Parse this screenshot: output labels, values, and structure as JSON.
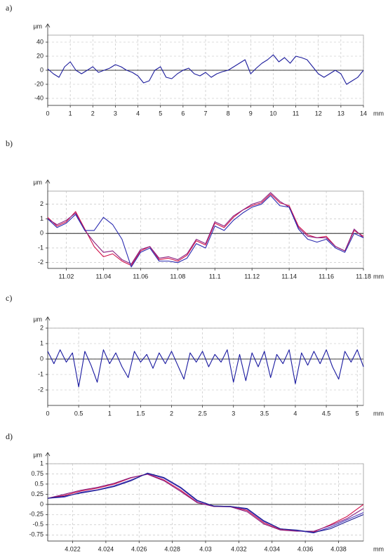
{
  "chart_data": [
    {
      "type": "line",
      "label": "a)",
      "ylabel": "µm",
      "xlabel": "mm",
      "grid": true,
      "xlim": [
        0,
        14
      ],
      "ylim": [
        -50,
        50
      ],
      "xticks": [
        0,
        1,
        2,
        3,
        4,
        5,
        6,
        7,
        8,
        9,
        10,
        11,
        12,
        13,
        14
      ],
      "yticks": [
        -40,
        -20,
        0,
        20,
        40
      ],
      "x": [
        0,
        0.25,
        0.5,
        0.75,
        1,
        1.25,
        1.5,
        1.75,
        2,
        2.25,
        2.5,
        2.75,
        3,
        3.25,
        3.5,
        3.75,
        4,
        4.25,
        4.5,
        4.75,
        5,
        5.25,
        5.5,
        5.75,
        6,
        6.25,
        6.5,
        6.75,
        7,
        7.25,
        7.5,
        7.75,
        8,
        8.25,
        8.5,
        8.75,
        9,
        9.25,
        9.5,
        9.75,
        10,
        10.25,
        10.5,
        10.75,
        11,
        11.25,
        11.5,
        11.75,
        12,
        12.25,
        12.5,
        12.75,
        13,
        13.25,
        13.5,
        13.75,
        14
      ],
      "series": [
        {
          "color": "#1c1c9c",
          "values": [
            2,
            -5,
            -10,
            5,
            12,
            0,
            -5,
            0,
            5,
            -3,
            0,
            3,
            8,
            5,
            0,
            -3,
            -8,
            -18,
            -15,
            0,
            5,
            -10,
            -12,
            -5,
            0,
            3,
            -5,
            -8,
            -3,
            -10,
            -5,
            -2,
            0,
            5,
            10,
            15,
            -5,
            3,
            10,
            15,
            22,
            12,
            18,
            10,
            20,
            18,
            15,
            5,
            -5,
            -10,
            -5,
            0,
            -5,
            -20,
            -15,
            -10,
            0
          ]
        }
      ]
    },
    {
      "type": "line",
      "label": "b)",
      "ylabel": "µm",
      "xlabel": "mm",
      "grid": true,
      "xlim": [
        11.01,
        11.18
      ],
      "ylim": [
        -2.4,
        2.9
      ],
      "xticks": [
        11.02,
        11.04,
        11.06,
        11.08,
        11.1,
        11.12,
        11.14,
        11.16,
        11.18
      ],
      "yticks": [
        -2,
        -1,
        0,
        1,
        2
      ],
      "x": [
        11.01,
        11.015,
        11.02,
        11.025,
        11.03,
        11.035,
        11.04,
        11.045,
        11.05,
        11.055,
        11.06,
        11.065,
        11.07,
        11.075,
        11.08,
        11.085,
        11.09,
        11.095,
        11.1,
        11.105,
        11.11,
        11.115,
        11.12,
        11.125,
        11.13,
        11.135,
        11.14,
        11.145,
        11.15,
        11.155,
        11.16,
        11.165,
        11.17,
        11.175,
        11.18
      ],
      "series": [
        {
          "color": "#d0104a",
          "values": [
            1.1,
            0.5,
            0.8,
            1.5,
            0.3,
            -0.9,
            -1.6,
            -1.4,
            -1.9,
            -2.2,
            -1.2,
            -0.9,
            -1.8,
            -1.7,
            -1.9,
            -1.5,
            -0.5,
            -0.8,
            0.7,
            0.4,
            1.1,
            1.6,
            1.9,
            2.1,
            2.7,
            2.1,
            1.9,
            0.5,
            -0.1,
            -0.3,
            -0.2,
            -0.9,
            -1.2,
            0.2,
            -0.2
          ]
        },
        {
          "color": "#8a2080",
          "values": [
            1.0,
            0.6,
            0.9,
            1.4,
            0.2,
            -0.6,
            -1.3,
            -1.2,
            -1.8,
            -2.1,
            -1.1,
            -0.9,
            -1.7,
            -1.6,
            -1.8,
            -1.4,
            -0.4,
            -0.7,
            0.8,
            0.5,
            1.2,
            1.6,
            2.0,
            2.2,
            2.8,
            2.2,
            1.8,
            0.4,
            -0.2,
            -0.3,
            -0.3,
            -0.9,
            -1.2,
            0.3,
            -0.3
          ]
        },
        {
          "color": "#2a2ab0",
          "values": [
            1.0,
            0.4,
            0.7,
            1.3,
            0.2,
            0.2,
            1.1,
            0.6,
            -0.4,
            -2.3,
            -1.3,
            -1.0,
            -1.9,
            -1.9,
            -2.0,
            -1.7,
            -0.7,
            -1.0,
            0.5,
            0.2,
            0.9,
            1.4,
            1.8,
            2.0,
            2.6,
            1.9,
            1.8,
            0.3,
            -0.4,
            -0.6,
            -0.4,
            -1.0,
            -1.3,
            0.0,
            -0.3
          ]
        }
      ]
    },
    {
      "type": "line",
      "label": "c)",
      "ylabel": "µm",
      "xlabel": "mm",
      "grid": true,
      "xlim": [
        0,
        5.1
      ],
      "ylim": [
        -3,
        2
      ],
      "xticks": [
        0,
        0.5,
        1,
        1.5,
        2,
        2.5,
        3,
        3.5,
        4,
        4.5,
        5
      ],
      "yticks": [
        -2,
        -1,
        0,
        1,
        2
      ],
      "x": [
        0,
        0.1,
        0.2,
        0.3,
        0.4,
        0.5,
        0.6,
        0.7,
        0.8,
        0.9,
        1.0,
        1.1,
        1.2,
        1.3,
        1.4,
        1.5,
        1.6,
        1.7,
        1.8,
        1.9,
        2.0,
        2.1,
        2.2,
        2.3,
        2.4,
        2.5,
        2.6,
        2.7,
        2.8,
        2.9,
        3.0,
        3.1,
        3.2,
        3.3,
        3.4,
        3.5,
        3.6,
        3.7,
        3.8,
        3.9,
        4.0,
        4.1,
        4.2,
        4.3,
        4.4,
        4.5,
        4.6,
        4.7,
        4.8,
        4.9,
        5.0,
        5.1
      ],
      "series": [
        {
          "color": "#1a1aa0",
          "values": [
            0.5,
            -0.3,
            0.6,
            -0.2,
            0.4,
            -1.8,
            0.5,
            -0.4,
            -1.5,
            0.6,
            -0.3,
            0.4,
            -0.5,
            -1.2,
            0.5,
            -0.2,
            0.3,
            -0.6,
            0.4,
            -0.3,
            0.5,
            -0.4,
            -1.3,
            0.4,
            -0.2,
            0.5,
            -0.5,
            0.3,
            -0.2,
            0.6,
            -1.5,
            0.3,
            -1.4,
            0.4,
            -0.5,
            0.5,
            -1.2,
            0.3,
            -0.3,
            0.6,
            -1.6,
            0.4,
            -0.4,
            0.5,
            -0.3,
            0.6,
            -0.5,
            -1.3,
            0.5,
            -0.2,
            0.6,
            -0.5
          ]
        }
      ]
    },
    {
      "type": "line",
      "label": "d)",
      "ylabel": "µm",
      "xlabel": "mm",
      "grid": true,
      "xlim": [
        4.0205,
        4.0395
      ],
      "ylim": [
        -0.9,
        1
      ],
      "xticks": [
        4.022,
        4.024,
        4.026,
        4.028,
        4.03,
        4.032,
        4.034,
        4.036,
        4.038
      ],
      "yticks": [
        -0.75,
        -0.5,
        -0.25,
        0,
        0.25,
        0.5,
        0.75,
        1
      ],
      "x": [
        4.0205,
        4.0215,
        4.0225,
        4.0235,
        4.0245,
        4.0255,
        4.0265,
        4.0275,
        4.0285,
        4.0295,
        4.0305,
        4.0315,
        4.0325,
        4.0335,
        4.0345,
        4.0355,
        4.0365,
        4.0375,
        4.0385,
        4.0395
      ],
      "series": [
        {
          "color": "#d0104a",
          "values": [
            0.15,
            0.22,
            0.33,
            0.4,
            0.5,
            0.65,
            0.75,
            0.6,
            0.35,
            0.05,
            -0.05,
            -0.05,
            -0.15,
            -0.45,
            -0.62,
            -0.65,
            -0.68,
            -0.5,
            -0.3,
            0.0
          ]
        },
        {
          "color": "#8a2080",
          "values": [
            0.15,
            0.25,
            0.35,
            0.42,
            0.52,
            0.66,
            0.74,
            0.58,
            0.32,
            0.04,
            -0.05,
            -0.06,
            -0.18,
            -0.48,
            -0.63,
            -0.66,
            -0.66,
            -0.52,
            -0.35,
            -0.1
          ]
        },
        {
          "color": "#4a3ac0",
          "values": [
            0.15,
            0.18,
            0.3,
            0.36,
            0.46,
            0.6,
            0.76,
            0.64,
            0.4,
            0.08,
            -0.04,
            -0.05,
            -0.12,
            -0.42,
            -0.6,
            -0.64,
            -0.7,
            -0.56,
            -0.38,
            -0.2
          ]
        },
        {
          "color": "#1a1a90",
          "values": [
            0.15,
            0.2,
            0.28,
            0.35,
            0.44,
            0.58,
            0.77,
            0.66,
            0.42,
            0.1,
            -0.04,
            -0.05,
            -0.1,
            -0.4,
            -0.6,
            -0.63,
            -0.69,
            -0.6,
            -0.42,
            -0.25
          ]
        }
      ]
    }
  ]
}
